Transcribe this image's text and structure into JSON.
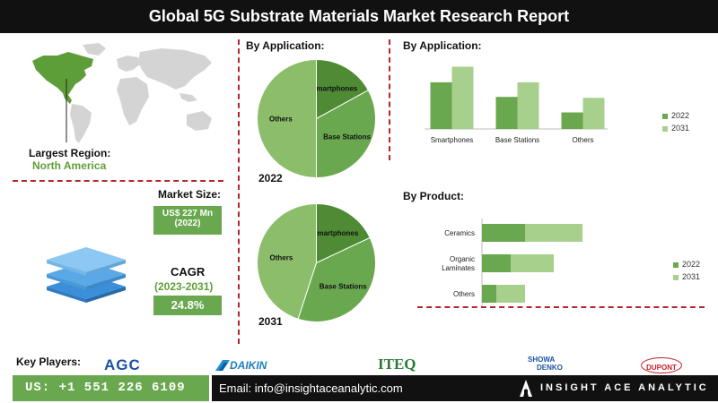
{
  "title": "Global 5G Substrate Materials Market Research Report",
  "region": {
    "label": "Largest Region:",
    "value": "North America"
  },
  "market_size": {
    "label": "Market Size:",
    "value_line1": "US$ 227 Mn",
    "value_line2": "(2022)"
  },
  "cagr": {
    "label": "CAGR",
    "period": "(2023-2031)",
    "value": "24.8%"
  },
  "key_players": {
    "label": "Key Players:",
    "logos": [
      "AGC",
      "DAIKIN",
      "ITEQ",
      "SHOWA",
      "DENKO",
      "DUPONT"
    ]
  },
  "footer": {
    "phone": "US: +1 551 226 6109",
    "email": "Email: info@insightaceanalytic.com",
    "brand": "INSIGHT ACE ANALYTIC"
  },
  "colors": {
    "dark_green": "#4f8a34",
    "mid_green": "#6aa84f",
    "light_green": "#8cbd6b",
    "pale_green": "#a8d08d",
    "accent_red": "#b4252d",
    "map_green": "#5e9e38",
    "map_grey": "#d4d4d4"
  },
  "chart_data": [
    {
      "type": "pie",
      "title": "By Application:",
      "caption": "2022",
      "labels": [
        "Smartphones",
        "Base Stations",
        "Others"
      ],
      "values": [
        17,
        33,
        50
      ],
      "colors": [
        "#4f8a34",
        "#6aa84f",
        "#8cbd6b"
      ]
    },
    {
      "type": "pie",
      "caption": "2031",
      "labels": [
        "Smartphones",
        "Base Stations",
        "Others"
      ],
      "values": [
        18,
        37,
        45
      ],
      "colors": [
        "#4f8a34",
        "#6aa84f",
        "#8cbd6b"
      ]
    },
    {
      "type": "bar",
      "title": "By Application:",
      "categories": [
        "Smartphones",
        "Base Stations",
        "Others"
      ],
      "series": [
        {
          "name": "2022",
          "values": [
            48,
            33,
            17
          ],
          "color": "#6aa84f"
        },
        {
          "name": "2031",
          "values": [
            64,
            48,
            32
          ],
          "color": "#a8d08d"
        }
      ],
      "ylim": [
        0,
        70
      ],
      "grid": false,
      "legend": "right"
    },
    {
      "type": "bar",
      "orientation": "horizontal",
      "stacked": true,
      "title": "By Product:",
      "categories": [
        "Ceramics",
        "Organic Laminates",
        "Others"
      ],
      "series": [
        {
          "name": "2022",
          "values": [
            30,
            20,
            10
          ],
          "color": "#6aa84f"
        },
        {
          "name": "2031",
          "values": [
            40,
            30,
            20
          ],
          "color": "#a8d08d"
        }
      ],
      "xlim": [
        0,
        100
      ],
      "grid": false,
      "legend": "right"
    }
  ]
}
